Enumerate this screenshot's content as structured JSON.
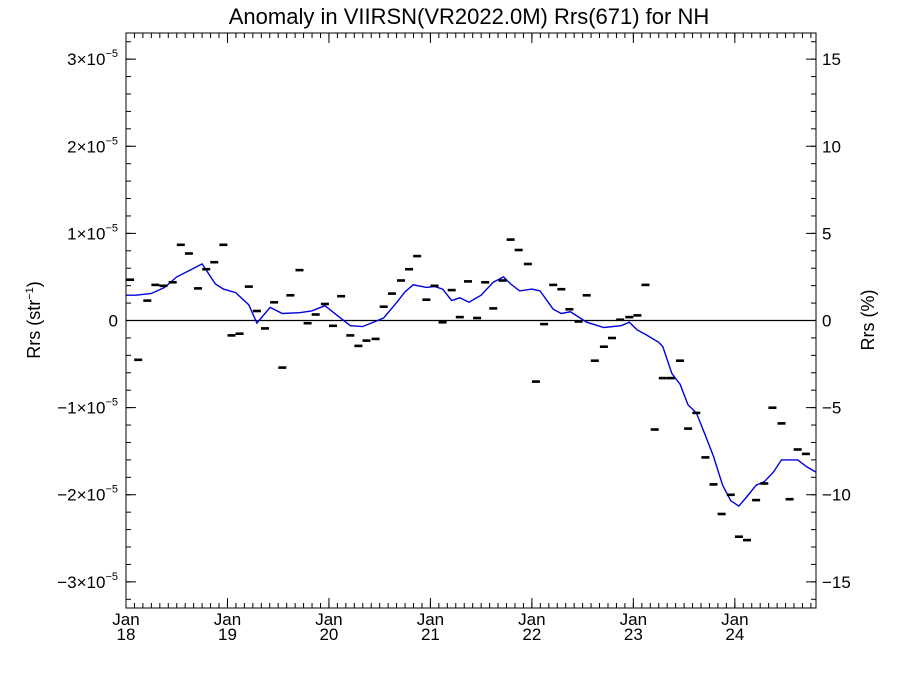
{
  "chart_data": {
    "type": "scatter",
    "title": "Anomaly in VIIRSN(VR2022.0M) Rrs(671) for NH",
    "ylabel_left": "Rrs (str",
    "ylabel_left_sup": "−1",
    "ylabel_left_close": ")",
    "ylabel_right": "Rrs (%)",
    "xlim": [
      2018.0,
      2024.8
    ],
    "ylim": [
      -3.3e-05,
      3.3e-05
    ],
    "y_right_lim": [
      -16.5,
      16.5
    ],
    "left_ticks": [
      {
        "value": 3e-05,
        "label": "3×10",
        "exp": "−5"
      },
      {
        "value": 2e-05,
        "label": "2×10",
        "exp": "−5"
      },
      {
        "value": 1e-05,
        "label": "1×10",
        "exp": "−5"
      },
      {
        "value": 0,
        "label": "0",
        "exp": ""
      },
      {
        "value": -1e-05,
        "label": "−1×10",
        "exp": "−5"
      },
      {
        "value": -2e-05,
        "label": "−2×10",
        "exp": "−5"
      },
      {
        "value": -3e-05,
        "label": "−3×10",
        "exp": "−5"
      }
    ],
    "right_ticks": [
      {
        "value": 15,
        "label": "15"
      },
      {
        "value": 10,
        "label": "10"
      },
      {
        "value": 5,
        "label": "5"
      },
      {
        "value": 0,
        "label": "0"
      },
      {
        "value": -5,
        "label": "−5"
      },
      {
        "value": -10,
        "label": "−10"
      },
      {
        "value": -15,
        "label": "−15"
      }
    ],
    "x_ticks": [
      {
        "value": 2018,
        "month": "Jan",
        "year": "18"
      },
      {
        "value": 2019,
        "month": "Jan",
        "year": "19"
      },
      {
        "value": 2020,
        "month": "Jan",
        "year": "20"
      },
      {
        "value": 2021,
        "month": "Jan",
        "year": "21"
      },
      {
        "value": 2022,
        "month": "Jan",
        "year": "22"
      },
      {
        "value": 2023,
        "month": "Jan",
        "year": "23"
      },
      {
        "value": 2024,
        "month": "Jan",
        "year": "24"
      }
    ],
    "zero_line": true,
    "series": [
      {
        "kind": "points",
        "color": "#000000",
        "points": [
          [
            2018.04,
            4.7e-06
          ],
          [
            2018.12,
            -4.5e-06
          ],
          [
            2018.21,
            2.3e-06
          ],
          [
            2018.29,
            4.1e-06
          ],
          [
            2018.37,
            4e-06
          ],
          [
            2018.46,
            4.4e-06
          ],
          [
            2018.54,
            8.7e-06
          ],
          [
            2018.62,
            7.7e-06
          ],
          [
            2018.71,
            3.7e-06
          ],
          [
            2018.79,
            5.9e-06
          ],
          [
            2018.87,
            6.7e-06
          ],
          [
            2018.96,
            8.7e-06
          ],
          [
            2019.04,
            -1.7e-06
          ],
          [
            2019.12,
            -1.5e-06
          ],
          [
            2019.21,
            3.9e-06
          ],
          [
            2019.29,
            1.1e-06
          ],
          [
            2019.37,
            -9e-07
          ],
          [
            2019.46,
            2.1e-06
          ],
          [
            2019.54,
            -5.4e-06
          ],
          [
            2019.62,
            2.9e-06
          ],
          [
            2019.71,
            5.8e-06
          ],
          [
            2019.79,
            -3e-07
          ],
          [
            2019.87,
            7e-07
          ],
          [
            2019.96,
            1.9e-06
          ],
          [
            2020.04,
            -6e-07
          ],
          [
            2020.12,
            2.8e-06
          ],
          [
            2020.21,
            -1.7e-06
          ],
          [
            2020.29,
            -2.9e-06
          ],
          [
            2020.37,
            -2.3e-06
          ],
          [
            2020.46,
            -2.1e-06
          ],
          [
            2020.54,
            1.6e-06
          ],
          [
            2020.62,
            3.1e-06
          ],
          [
            2020.71,
            4.6e-06
          ],
          [
            2020.79,
            5.9e-06
          ],
          [
            2020.87,
            7.4e-06
          ],
          [
            2020.96,
            2.4e-06
          ],
          [
            2021.04,
            4e-06
          ],
          [
            2021.12,
            -2e-07
          ],
          [
            2021.21,
            3.5e-06
          ],
          [
            2021.29,
            4e-07
          ],
          [
            2021.37,
            4.5e-06
          ],
          [
            2021.46,
            3e-07
          ],
          [
            2021.54,
            4.4e-06
          ],
          [
            2021.62,
            1.4e-06
          ],
          [
            2021.71,
            4.6e-06
          ],
          [
            2021.79,
            9.3e-06
          ],
          [
            2021.87,
            8.1e-06
          ],
          [
            2021.96,
            6.5e-06
          ],
          [
            2022.04,
            -7e-06
          ],
          [
            2022.12,
            -4e-07
          ],
          [
            2022.21,
            4.1e-06
          ],
          [
            2022.29,
            3.6e-06
          ],
          [
            2022.37,
            1.3e-06
          ],
          [
            2022.46,
            -1e-07
          ],
          [
            2022.54,
            2.9e-06
          ],
          [
            2022.62,
            -4.6e-06
          ],
          [
            2022.71,
            -3e-06
          ],
          [
            2022.79,
            -2e-06
          ],
          [
            2022.87,
            1e-07
          ],
          [
            2022.96,
            4e-07
          ],
          [
            2023.04,
            6e-07
          ],
          [
            2023.12,
            4.1e-06
          ],
          [
            2023.21,
            -1.25e-05
          ],
          [
            2023.29,
            -6.6e-06
          ],
          [
            2023.37,
            -6.6e-06
          ],
          [
            2023.46,
            -4.6e-06
          ],
          [
            2023.54,
            -1.24e-05
          ],
          [
            2023.62,
            -1.06e-05
          ],
          [
            2023.71,
            -1.57e-05
          ],
          [
            2023.79,
            -1.88e-05
          ],
          [
            2023.87,
            -2.22e-05
          ],
          [
            2023.96,
            -2e-05
          ],
          [
            2024.04,
            -2.48e-05
          ],
          [
            2024.12,
            -2.52e-05
          ],
          [
            2024.21,
            -2.06e-05
          ],
          [
            2024.29,
            -1.87e-05
          ],
          [
            2024.37,
            -1e-05
          ],
          [
            2024.46,
            -1.18e-05
          ],
          [
            2024.54,
            -2.05e-05
          ],
          [
            2024.62,
            -1.48e-05
          ],
          [
            2024.7,
            -1.53e-05
          ]
        ]
      },
      {
        "kind": "line",
        "color": "#0000dd",
        "points": [
          [
            2018.0,
            2.9e-06
          ],
          [
            2018.1,
            2.9e-06
          ],
          [
            2018.25,
            3.1e-06
          ],
          [
            2018.38,
            3.8e-06
          ],
          [
            2018.5,
            5e-06
          ],
          [
            2018.62,
            5.7e-06
          ],
          [
            2018.75,
            6.5e-06
          ],
          [
            2018.88,
            4.2e-06
          ],
          [
            2018.96,
            3.6e-06
          ],
          [
            2019.08,
            3.2e-06
          ],
          [
            2019.21,
            1.8e-06
          ],
          [
            2019.29,
            -3e-07
          ],
          [
            2019.42,
            1.5e-06
          ],
          [
            2019.54,
            8e-07
          ],
          [
            2019.71,
            9e-07
          ],
          [
            2019.83,
            1.1e-06
          ],
          [
            2019.96,
            1.7e-06
          ],
          [
            2020.08,
            6e-07
          ],
          [
            2020.21,
            -6e-07
          ],
          [
            2020.33,
            -7e-07
          ],
          [
            2020.46,
            -1e-07
          ],
          [
            2020.54,
            3e-07
          ],
          [
            2020.67,
            2.1e-06
          ],
          [
            2020.75,
            3.3e-06
          ],
          [
            2020.83,
            4.1e-06
          ],
          [
            2020.96,
            3.8e-06
          ],
          [
            2021.04,
            3.9e-06
          ],
          [
            2021.12,
            3.6e-06
          ],
          [
            2021.21,
            2.3e-06
          ],
          [
            2021.29,
            2.6e-06
          ],
          [
            2021.38,
            2.1e-06
          ],
          [
            2021.5,
            2.9e-06
          ],
          [
            2021.62,
            4.4e-06
          ],
          [
            2021.72,
            5e-06
          ],
          [
            2021.79,
            4.2e-06
          ],
          [
            2021.88,
            3.4e-06
          ],
          [
            2022.0,
            3.6e-06
          ],
          [
            2022.08,
            3.4e-06
          ],
          [
            2022.21,
            1.3e-06
          ],
          [
            2022.29,
            8e-07
          ],
          [
            2022.38,
            1e-06
          ],
          [
            2022.46,
            4e-07
          ],
          [
            2022.54,
            -2e-07
          ],
          [
            2022.71,
            -8e-07
          ],
          [
            2022.88,
            -6e-07
          ],
          [
            2022.96,
            -2e-07
          ],
          [
            2023.04,
            -1.1e-06
          ],
          [
            2023.12,
            -1.6e-06
          ],
          [
            2023.25,
            -2.5e-06
          ],
          [
            2023.29,
            -3e-06
          ],
          [
            2023.38,
            -6.1e-06
          ],
          [
            2023.46,
            -7.3e-06
          ],
          [
            2023.54,
            -9.7e-06
          ],
          [
            2023.62,
            -1.06e-05
          ],
          [
            2023.71,
            -1.32e-05
          ],
          [
            2023.79,
            -1.56e-05
          ],
          [
            2023.88,
            -1.89e-05
          ],
          [
            2023.96,
            -2.07e-05
          ],
          [
            2024.04,
            -2.13e-05
          ],
          [
            2024.12,
            -2.02e-05
          ],
          [
            2024.21,
            -1.89e-05
          ],
          [
            2024.29,
            -1.85e-05
          ],
          [
            2024.38,
            -1.74e-05
          ],
          [
            2024.46,
            -1.6e-05
          ],
          [
            2024.54,
            -1.6e-05
          ],
          [
            2024.62,
            -1.6e-05
          ],
          [
            2024.71,
            -1.68e-05
          ],
          [
            2024.8,
            -1.74e-05
          ]
        ]
      }
    ]
  }
}
